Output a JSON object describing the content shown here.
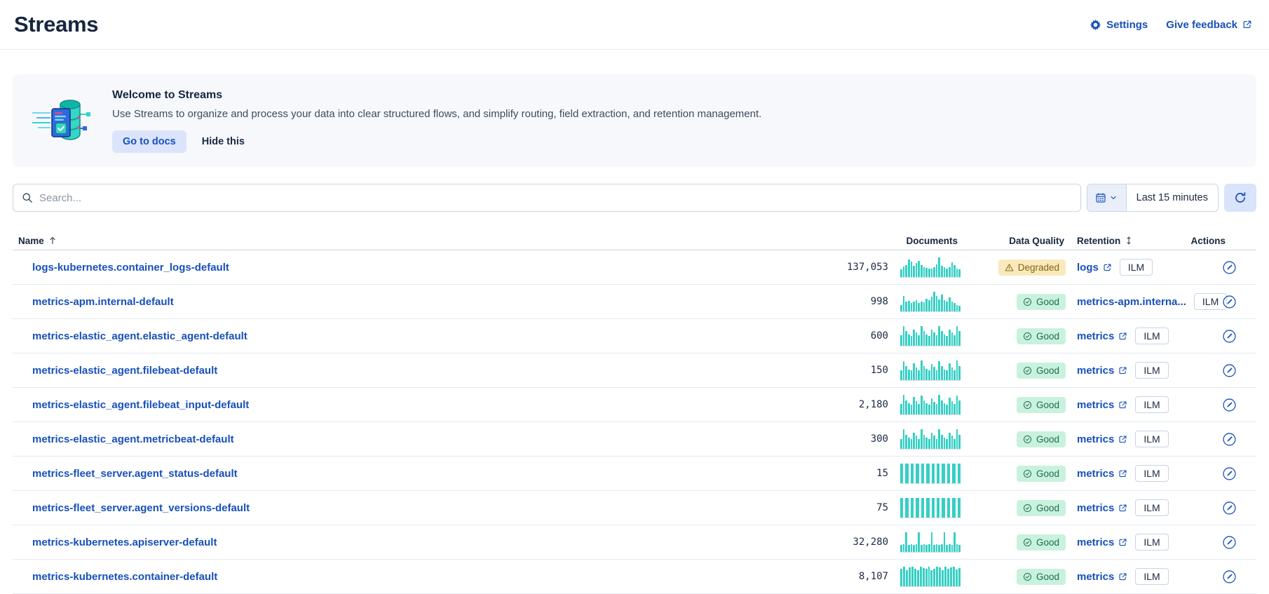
{
  "header": {
    "title": "Streams",
    "settings_label": "Settings",
    "feedback_label": "Give feedback"
  },
  "banner": {
    "title": "Welcome to Streams",
    "description": "Use Streams to organize and process your data into clear structured flows, and simplify routing, field extraction, and retention management.",
    "docs_button": "Go to docs",
    "hide_button": "Hide this"
  },
  "controls": {
    "search_placeholder": "Search...",
    "time_range": "Last 15 minutes"
  },
  "table": {
    "columns": {
      "name": "Name",
      "name_sort": "ascending",
      "documents": "Documents",
      "quality": "Data Quality",
      "retention": "Retention",
      "retention_sort": "sortable",
      "actions": "Actions"
    },
    "rows": [
      {
        "name": "logs-kubernetes.container_logs-default",
        "documents": "137,053",
        "quality": {
          "label": "Degraded",
          "status": "warning"
        },
        "retention": {
          "label": "logs",
          "external": true
        },
        "policy": "ILM",
        "spark": [
          0.38,
          0.52,
          0.6,
          0.88,
          0.78,
          0.55,
          0.68,
          0.82,
          0.6,
          0.5,
          0.45,
          0.4,
          0.42,
          0.5,
          0.62,
          1,
          0.55,
          0.48,
          0.42,
          0.5,
          0.72,
          0.6,
          0.42,
          0.38
        ]
      },
      {
        "name": "metrics-apm.internal-default",
        "documents": "998",
        "quality": {
          "label": "Good",
          "status": "success"
        },
        "retention": {
          "label": "metrics-apm.interna...",
          "external": false
        },
        "policy": "ILM",
        "spark": [
          0.32,
          0.78,
          0.48,
          0.52,
          0.42,
          0.48,
          0.55,
          0.42,
          0.5,
          0.46,
          0.62,
          0.55,
          0.72,
          1,
          0.78,
          0.6,
          0.85,
          0.55,
          0.5,
          0.68,
          0.48,
          0.4,
          0.32,
          0.28
        ]
      },
      {
        "name": "metrics-elastic_agent.elastic_agent-default",
        "documents": "600",
        "quality": {
          "label": "Good",
          "status": "success"
        },
        "retention": {
          "label": "metrics",
          "external": true
        },
        "policy": "ILM",
        "spark": [
          0.52,
          1,
          0.72,
          0.55,
          0.5,
          0.82,
          0.65,
          0.52,
          1,
          0.72,
          0.55,
          0.5,
          0.82,
          0.65,
          0.52,
          1,
          0.72,
          0.55,
          0.5,
          0.82,
          0.65,
          0.52,
          1,
          0.72
        ]
      },
      {
        "name": "metrics-elastic_agent.filebeat-default",
        "documents": "150",
        "quality": {
          "label": "Good",
          "status": "success"
        },
        "retention": {
          "label": "metrics",
          "external": true
        },
        "policy": "ILM",
        "spark": [
          0.5,
          0.95,
          0.7,
          0.52,
          0.5,
          0.85,
          0.62,
          0.5,
          1,
          0.7,
          0.55,
          0.5,
          0.8,
          0.65,
          0.5,
          0.95,
          0.7,
          0.52,
          0.5,
          0.85,
          0.62,
          0.5,
          1,
          0.7
        ]
      },
      {
        "name": "metrics-elastic_agent.filebeat_input-default",
        "documents": "2,180",
        "quality": {
          "label": "Good",
          "status": "success"
        },
        "retention": {
          "label": "metrics",
          "external": true
        },
        "policy": "ILM",
        "spark": [
          0.52,
          1,
          0.68,
          0.55,
          0.5,
          0.88,
          0.65,
          0.52,
          0.95,
          0.7,
          0.55,
          0.5,
          0.82,
          0.62,
          0.52,
          1,
          0.7,
          0.55,
          0.5,
          0.85,
          0.65,
          0.52,
          0.95,
          0.68
        ]
      },
      {
        "name": "metrics-elastic_agent.metricbeat-default",
        "documents": "300",
        "quality": {
          "label": "Good",
          "status": "success"
        },
        "retention": {
          "label": "metrics",
          "external": true
        },
        "policy": "ILM",
        "spark": [
          0.5,
          1,
          0.7,
          0.55,
          0.5,
          0.8,
          0.65,
          0.5,
          1,
          0.7,
          0.55,
          0.5,
          0.8,
          0.65,
          0.5,
          1,
          0.7,
          0.55,
          0.5,
          0.8,
          0.65,
          0.5,
          1,
          0.7
        ]
      },
      {
        "name": "metrics-fleet_server.agent_status-default",
        "documents": "15",
        "quality": {
          "label": "Good",
          "status": "success"
        },
        "retention": {
          "label": "metrics",
          "external": true
        },
        "policy": "ILM",
        "spark": [
          1,
          1,
          1,
          1,
          1,
          1,
          1,
          1,
          1,
          1,
          1,
          1
        ]
      },
      {
        "name": "metrics-fleet_server.agent_versions-default",
        "documents": "75",
        "quality": {
          "label": "Good",
          "status": "success"
        },
        "retention": {
          "label": "metrics",
          "external": true
        },
        "policy": "ILM",
        "spark": [
          1,
          1,
          1,
          1,
          1,
          1,
          1,
          1,
          1,
          1,
          1,
          1
        ]
      },
      {
        "name": "metrics-kubernetes.apiserver-default",
        "documents": "32,280",
        "quality": {
          "label": "Good",
          "status": "success"
        },
        "retention": {
          "label": "metrics",
          "external": true
        },
        "policy": "ILM",
        "spark": [
          0.34,
          0.38,
          1,
          0.34,
          0.36,
          0.34,
          0.38,
          1,
          0.34,
          0.36,
          0.34,
          0.38,
          1,
          0.34,
          0.36,
          0.34,
          0.38,
          1,
          0.34,
          0.36,
          0.34,
          1,
          0.36,
          0.34
        ]
      },
      {
        "name": "metrics-kubernetes.container-default",
        "documents": "8,107",
        "quality": {
          "label": "Good",
          "status": "success"
        },
        "retention": {
          "label": "metrics",
          "external": true
        },
        "policy": "ILM",
        "spark": [
          0.88,
          1,
          0.82,
          0.95,
          1,
          0.86,
          0.8,
          1,
          0.92,
          0.86,
          1,
          0.82,
          0.88,
          1,
          0.94,
          0.82,
          1,
          0.88,
          0.95,
          1,
          0.84,
          0.9
        ]
      }
    ]
  },
  "icons": {
    "header": [
      "gear-icon",
      "external-link-icon"
    ],
    "controls": [
      "search-icon",
      "calendar-icon",
      "chevron-down-icon",
      "refresh-icon"
    ],
    "table": [
      "sort-ascending-icon",
      "sort-both-icon",
      "warning-icon",
      "check-circle-icon",
      "external-link-icon",
      "edit-circle-icon"
    ]
  },
  "colors": {
    "link_blue": "#1750BA",
    "sparkline_teal": "#36CFC4",
    "warning_badge_bg": "#FAE9BC",
    "warning_badge_text": "#85610F",
    "success_badge_bg": "#C9F2DE",
    "success_badge_text": "#1F6B51",
    "banner_bg": "#F6F8FC",
    "button_bg": "#DCE4FB",
    "heading_text": "#16263D"
  }
}
